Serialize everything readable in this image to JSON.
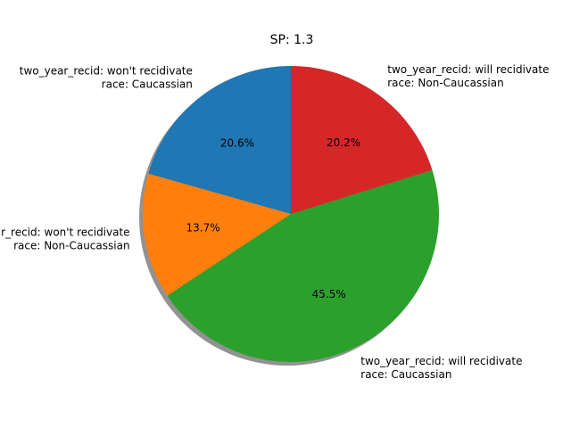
{
  "chart_data": {
    "type": "pie",
    "title": "SP: 1.3",
    "start_angle_deg": 90,
    "direction": "counterclockwise",
    "shadow": true,
    "slices": [
      {
        "label_line1": "two_year_recid: won't recidivate",
        "label_line2": "race: Caucassian",
        "value": 20.6,
        "pct_label": "20.6%",
        "color": "#1f77b4"
      },
      {
        "label_line1": "two_year_recid: won't recidivate",
        "label_line2": "race: Non-Caucassian",
        "value": 13.7,
        "pct_label": "13.7%",
        "color": "#ff7f0e"
      },
      {
        "label_line1": "two_year_recid: will recidivate",
        "label_line2": "race: Caucassian",
        "value": 45.5,
        "pct_label": "45.5%",
        "color": "#2ca02c"
      },
      {
        "label_line1": "two_year_recid: will recidivate",
        "label_line2": "race: Non-Caucassian",
        "value": 20.2,
        "pct_label": "20.2%",
        "color": "#d62728"
      }
    ]
  }
}
